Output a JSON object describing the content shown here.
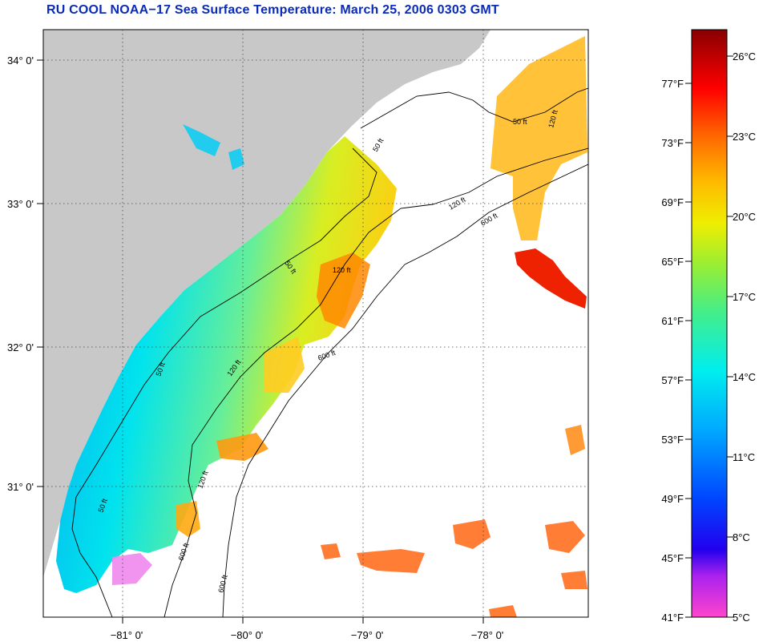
{
  "title": "RU COOL  NOAA−17  Sea Surface Temperature:  March 25, 2006 0303 GMT",
  "map": {
    "lon_ticks": [
      "−81° 0'",
      "−80° 0'",
      "−79° 0'",
      "−78° 0'"
    ],
    "lat_ticks": [
      "34° 0'",
      "33° 0'",
      "32° 0'",
      "31° 0'"
    ],
    "contour_labels": [
      "50 ft",
      "50 ft",
      "50 ft",
      "50 ft",
      "50 ft",
      "120 ft",
      "120 ft",
      "120 ft",
      "120 ft",
      "120 ft",
      "600 ft",
      "600 ft",
      "600 ft",
      "600 ft"
    ]
  },
  "colorbar": {
    "fahrenheit_labels": [
      "77°F",
      "73°F",
      "69°F",
      "65°F",
      "61°F",
      "57°F",
      "53°F",
      "49°F",
      "45°F",
      "41°F"
    ],
    "celsius_labels": [
      "26°C",
      "23°C",
      "20°C",
      "17°C",
      "14°C",
      "11°C",
      "8°C",
      "5°C"
    ]
  },
  "colors": {
    "title": "#0a2ab8",
    "land": "#c8c8c8",
    "ocean_nodata": "#ffffff"
  }
}
